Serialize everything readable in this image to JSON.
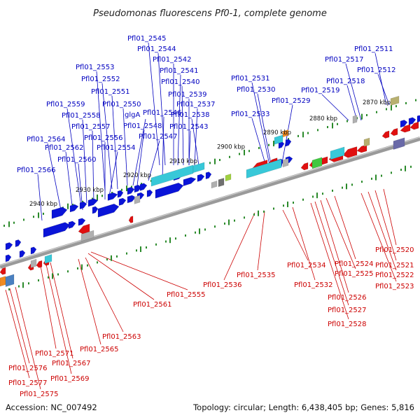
{
  "title": "Pseudomonas fluorescens Pf0-1, complete genome",
  "footer": {
    "accession": "Accession: NC_007492",
    "summary": "Topology: circular; Length: 6,438,405 bp; Genes: 5,816"
  },
  "colors": {
    "forward_gene": "#0a14d8",
    "reverse_gene": "#e01010",
    "forward_label": "#0000c0",
    "reverse_label": "#cc0000",
    "backbone": "#888888",
    "tick": "#2a8a2a",
    "rna_cyan": "#38c8d8",
    "rna_green": "#40c840",
    "gray_feature": "#b0b0b0",
    "orange_feature": "#f08a20",
    "olive_feature": "#b8b070",
    "slate_feature": "#6a6aa8"
  },
  "kbp_markers": [
    "2870 kbp",
    "2880 kbp",
    "2890 kbp",
    "2900 kbp",
    "2910 kbp",
    "2920 kbp",
    "2930 kbp",
    "2940 kbp"
  ],
  "forward_genes": [
    "Pfl01_2545",
    "Pfl01_2544",
    "Pfl01_2542",
    "Pfl01_2541",
    "Pfl01_2540",
    "Pfl01_2539",
    "Pfl01_2537",
    "Pfl01_2538",
    "Pfl01_2543",
    "Pfl01_2546",
    "Pfl01_2547",
    "Pfl01_2548",
    "glgA",
    "Pfl01_2550",
    "Pfl01_2551",
    "Pfl01_2552",
    "Pfl01_2553",
    "Pfl01_2554",
    "Pfl01_2556",
    "Pfl01_2557",
    "Pfl01_2558",
    "Pfl01_2559",
    "Pfl01_2560",
    "Pfl01_2562",
    "Pfl01_2564",
    "Pfl01_2566",
    "Pfl01_2531",
    "Pfl01_2530",
    "Pfl01_2533",
    "Pfl01_2529",
    "Pfl01_2519",
    "Pfl01_2518",
    "Pfl01_2517",
    "Pfl01_2511",
    "Pfl01_2512"
  ],
  "reverse_genes": [
    "Pfl01_2520",
    "Pfl01_2521",
    "Pfl01_2522",
    "Pfl01_2523",
    "Pfl01_2524",
    "Pfl01_2525",
    "Pfl01_2526",
    "Pfl01_2527",
    "Pfl01_2528",
    "Pfl01_2532",
    "Pfl01_2534",
    "Pfl01_2535",
    "Pfl01_2536",
    "Pfl01_2555",
    "Pfl01_2561",
    "Pfl01_2563",
    "Pfl01_2565",
    "Pfl01_2567",
    "Pfl01_2569",
    "Pfl01_2571",
    "Pfl01_2575",
    "Pfl01_2576",
    "Pfl01_2577"
  ]
}
